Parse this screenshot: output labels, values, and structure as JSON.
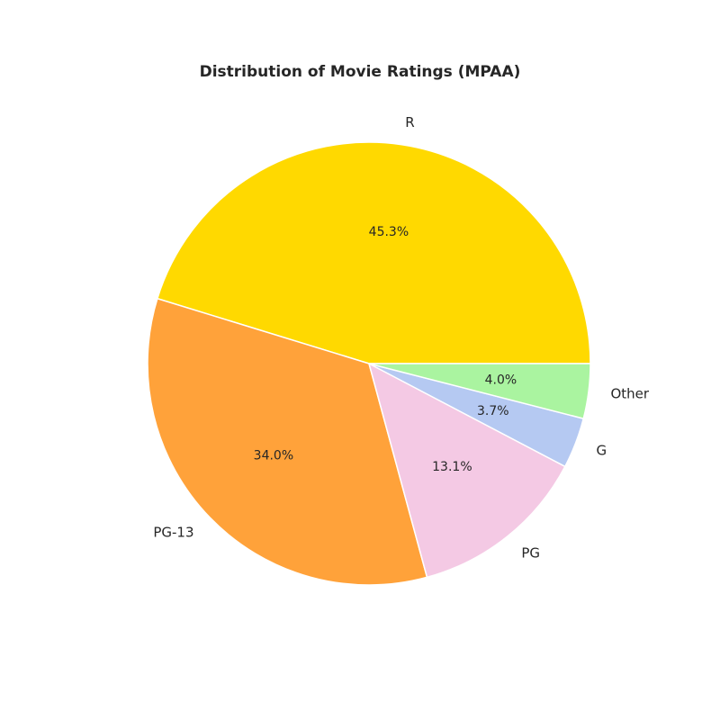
{
  "chart_data": {
    "type": "pie",
    "title": "Distribution of Movie Ratings (MPAA)",
    "categories": [
      "R",
      "PG-13",
      "PG",
      "G",
      "Other"
    ],
    "values": [
      45.3,
      34.0,
      13.1,
      3.7,
      4.0
    ],
    "value_labels": [
      "45.3%",
      "34.0%",
      "13.1%",
      "3.7%",
      "4.0%"
    ],
    "colors": [
      "#FFD900",
      "#FFA23A",
      "#F4C9E4",
      "#B5C9F2",
      "#AAF4A0"
    ],
    "start_angle_deg": 0,
    "direction": "counterclockwise",
    "legend": "none"
  }
}
